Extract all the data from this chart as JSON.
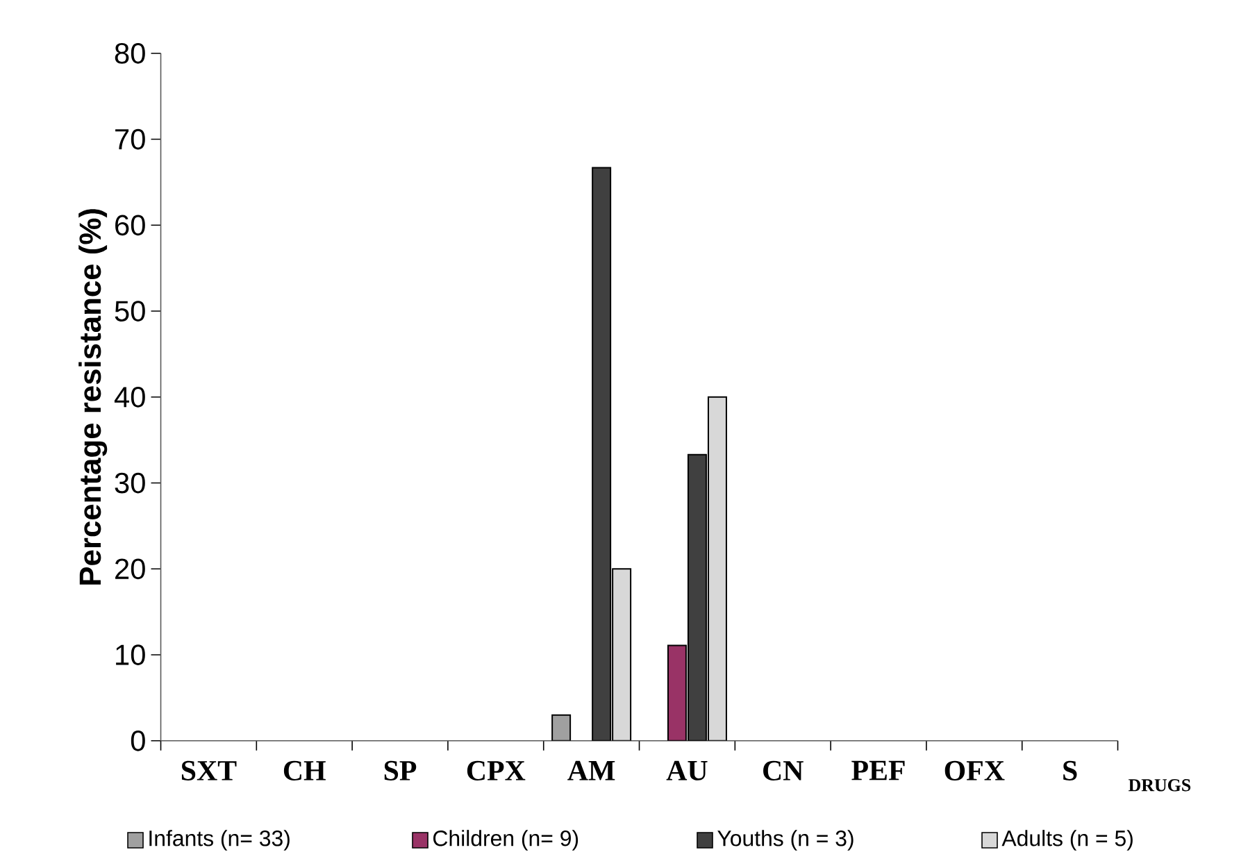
{
  "chart_data": {
    "type": "bar",
    "xlabel": "DRUGS",
    "ylabel": "Percentage resistance (%)",
    "categories": [
      "SXT",
      "CH",
      "SP",
      "CPX",
      "AM",
      "AU",
      "CN",
      "PEF",
      "OFX",
      "S"
    ],
    "series": [
      {
        "name": "Infants (n= 33)",
        "color": "#a0a0a0",
        "values": [
          0,
          0,
          0,
          0,
          3,
          0,
          0,
          0,
          0,
          0
        ]
      },
      {
        "name": "Children (n= 9)",
        "color": "#993366",
        "values": [
          0,
          0,
          0,
          0,
          0,
          11.1,
          0,
          0,
          0,
          0
        ]
      },
      {
        "name": "Youths (n = 3)",
        "color": "#404040",
        "values": [
          0,
          0,
          0,
          0,
          66.7,
          33.3,
          0,
          0,
          0,
          0
        ]
      },
      {
        "name": "Adults (n = 5)",
        "color": "#d8d8d8",
        "values": [
          0,
          0,
          0,
          0,
          20,
          40,
          0,
          0,
          0,
          0
        ]
      }
    ],
    "ylim": [
      0,
      80
    ],
    "yticks": [
      0,
      10,
      20,
      30,
      40,
      50,
      60,
      70,
      80
    ],
    "grid": false,
    "legend": "bottom"
  }
}
